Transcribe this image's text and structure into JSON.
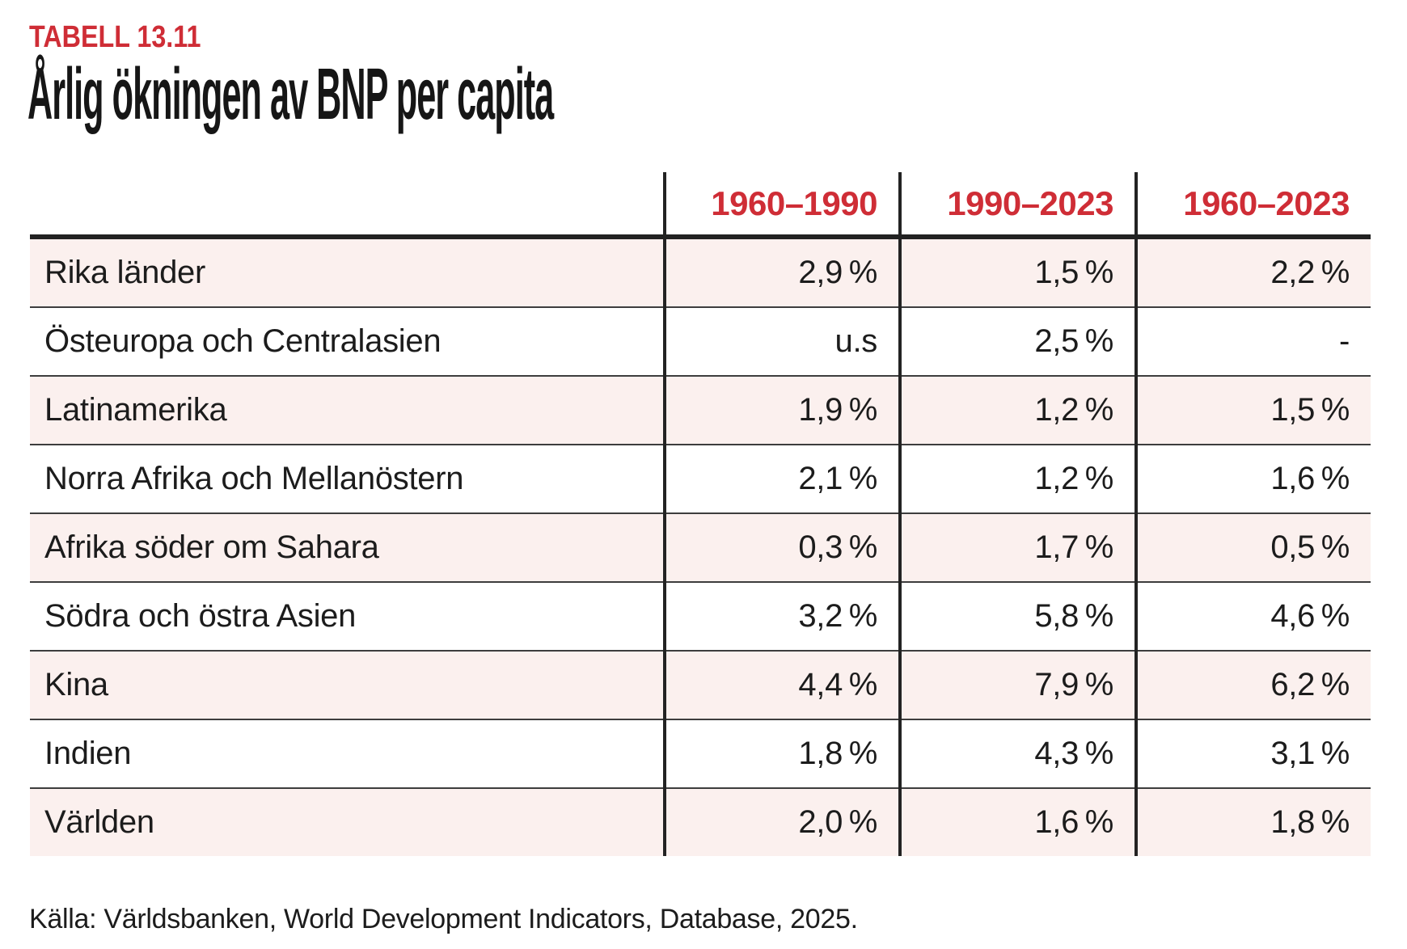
{
  "colors": {
    "accent_red": "#cf2d36",
    "row_pink": "#fbf0ee",
    "rule_black": "#222222"
  },
  "kicker": "TABELL 13.11",
  "title": "Årlig ökningen av BNP per capita",
  "source": "Källa: Världsbanken, World Development Indicators, Database, 2025.",
  "chart_data": {
    "type": "table",
    "title": "Årlig ökningen av BNP per capita",
    "columns": [
      "",
      "1960–1990",
      "1990–2023",
      "1960–2023"
    ],
    "rows": [
      {
        "label": "Rika länder",
        "values": [
          "2,9 %",
          "1,5 %",
          "2,2 %"
        ]
      },
      {
        "label": "Östeuropa och Centralasien",
        "values": [
          "u.s",
          "2,5 %",
          "-"
        ]
      },
      {
        "label": "Latinamerika",
        "values": [
          "1,9 %",
          "1,2 %",
          "1,5 %"
        ]
      },
      {
        "label": "Norra Afrika och Mellanöstern",
        "values": [
          "2,1 %",
          "1,2 %",
          "1,6 %"
        ]
      },
      {
        "label": "Afrika söder om Sahara",
        "values": [
          "0,3 %",
          "1,7 %",
          "0,5 %"
        ]
      },
      {
        "label": "Södra och östra Asien",
        "values": [
          "3,2 %",
          "5,8 %",
          "4,6 %"
        ]
      },
      {
        "label": "Kina",
        "values": [
          "4,4 %",
          "7,9 %",
          "6,2 %"
        ]
      },
      {
        "label": "Indien",
        "values": [
          "1,8 %",
          "4,3 %",
          "3,1 %"
        ]
      },
      {
        "label": "Världen",
        "values": [
          "2,0 %",
          "1,6 %",
          "1,8 %"
        ]
      }
    ]
  }
}
